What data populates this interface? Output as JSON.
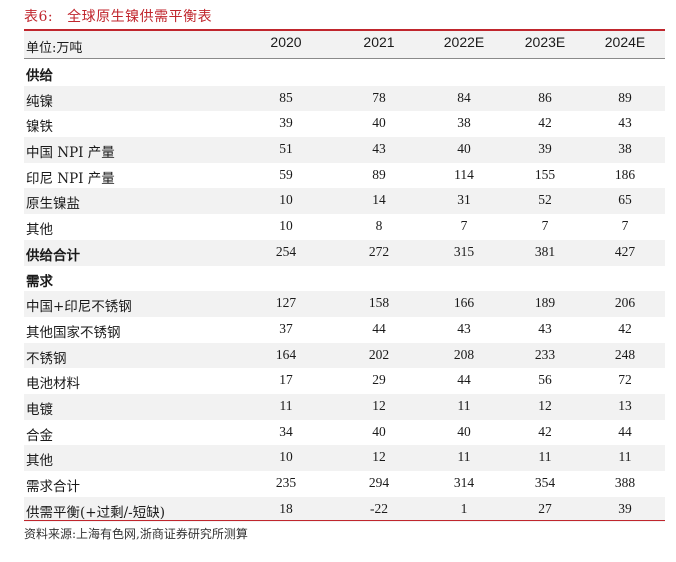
{
  "title": {
    "label": "表6:",
    "text": "全球原生镍供需平衡表"
  },
  "header": {
    "unit": "单位:万吨",
    "years": [
      "2020",
      "2021",
      "2022E",
      "2023E",
      "2024E"
    ]
  },
  "rows": [
    {
      "label": "供给",
      "section": true,
      "values": [
        "",
        "",
        "",
        "",
        ""
      ]
    },
    {
      "label": "纯镍",
      "values": [
        "85",
        "78",
        "84",
        "86",
        "89"
      ]
    },
    {
      "label": "镍铁",
      "values": [
        "39",
        "40",
        "38",
        "42",
        "43"
      ]
    },
    {
      "label": "中国 NPI 产量",
      "values": [
        "51",
        "43",
        "40",
        "39",
        "38"
      ]
    },
    {
      "label": "印尼 NPI 产量",
      "values": [
        "59",
        "89",
        "114",
        "155",
        "186"
      ]
    },
    {
      "label": "原生镍盐",
      "values": [
        "10",
        "14",
        "31",
        "52",
        "65"
      ]
    },
    {
      "label": "其他",
      "values": [
        "10",
        "8",
        "7",
        "7",
        "7"
      ]
    },
    {
      "label": "供给合计",
      "bold": true,
      "values": [
        "254",
        "272",
        "315",
        "381",
        "427"
      ]
    },
    {
      "label": "需求",
      "section": true,
      "values": [
        "",
        "",
        "",
        "",
        ""
      ]
    },
    {
      "label": "中国+印尼不锈钢",
      "values": [
        "127",
        "158",
        "166",
        "189",
        "206"
      ]
    },
    {
      "label": "其他国家不锈钢",
      "values": [
        "37",
        "44",
        "43",
        "43",
        "42"
      ]
    },
    {
      "label": "不锈钢",
      "values": [
        "164",
        "202",
        "208",
        "233",
        "248"
      ]
    },
    {
      "label": "电池材料",
      "values": [
        "17",
        "29",
        "44",
        "56",
        "72"
      ]
    },
    {
      "label": "电镀",
      "values": [
        "11",
        "12",
        "11",
        "12",
        "13"
      ]
    },
    {
      "label": "合金",
      "values": [
        "34",
        "40",
        "40",
        "42",
        "44"
      ]
    },
    {
      "label": "其他",
      "values": [
        "10",
        "12",
        "11",
        "11",
        "11"
      ]
    },
    {
      "label": "需求合计",
      "values": [
        "235",
        "294",
        "314",
        "354",
        "388"
      ]
    },
    {
      "label": "供需平衡(+过剩/-短缺)",
      "values": [
        "18",
        "-22",
        "1",
        "27",
        "39"
      ]
    }
  ],
  "source": "资料来源:上海有色网,浙商证券研究所测算"
}
